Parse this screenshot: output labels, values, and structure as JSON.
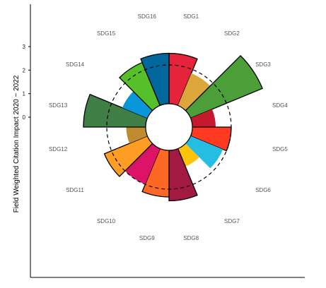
{
  "chart_data": {
    "type": "polar-bar",
    "categories": [
      "SDG1",
      "SDG2",
      "SDG3",
      "SDG4",
      "SDG5",
      "SDG6",
      "SDG7",
      "SDG8",
      "SDG9",
      "SDG10",
      "SDG11",
      "SDG12",
      "SDG13",
      "SDG14",
      "SDG15",
      "SDG16"
    ],
    "values": [
      1.3,
      0.9,
      2.0,
      0.6,
      1.0,
      0.9,
      0.5,
      1.3,
      1.2,
      1.0,
      1.2,
      0.5,
      1.6,
      0.7,
      1.2,
      1.3
    ],
    "colors": [
      "#e5243b",
      "#dda63a",
      "#4c9f38",
      "#c5192d",
      "#ff3a21",
      "#26bde2",
      "#fcc30b",
      "#a21942",
      "#fd6925",
      "#dd1367",
      "#fd9d24",
      "#bf8b2e",
      "#3f7e44",
      "#0a97d9",
      "#56c02b",
      "#00689d"
    ],
    "outlined": [
      true,
      false,
      true,
      false,
      true,
      false,
      false,
      true,
      true,
      false,
      true,
      false,
      true,
      false,
      true,
      true
    ],
    "reference_value": 1,
    "reference_style": "dashed circle",
    "ylabel": "Field Weighted Citation Impact 2020 − 2022",
    "ytick_labels": [
      "0",
      "1",
      "2",
      "3"
    ],
    "ytick_values": [
      0,
      1,
      2,
      3
    ],
    "grid": false,
    "legend": "none"
  }
}
